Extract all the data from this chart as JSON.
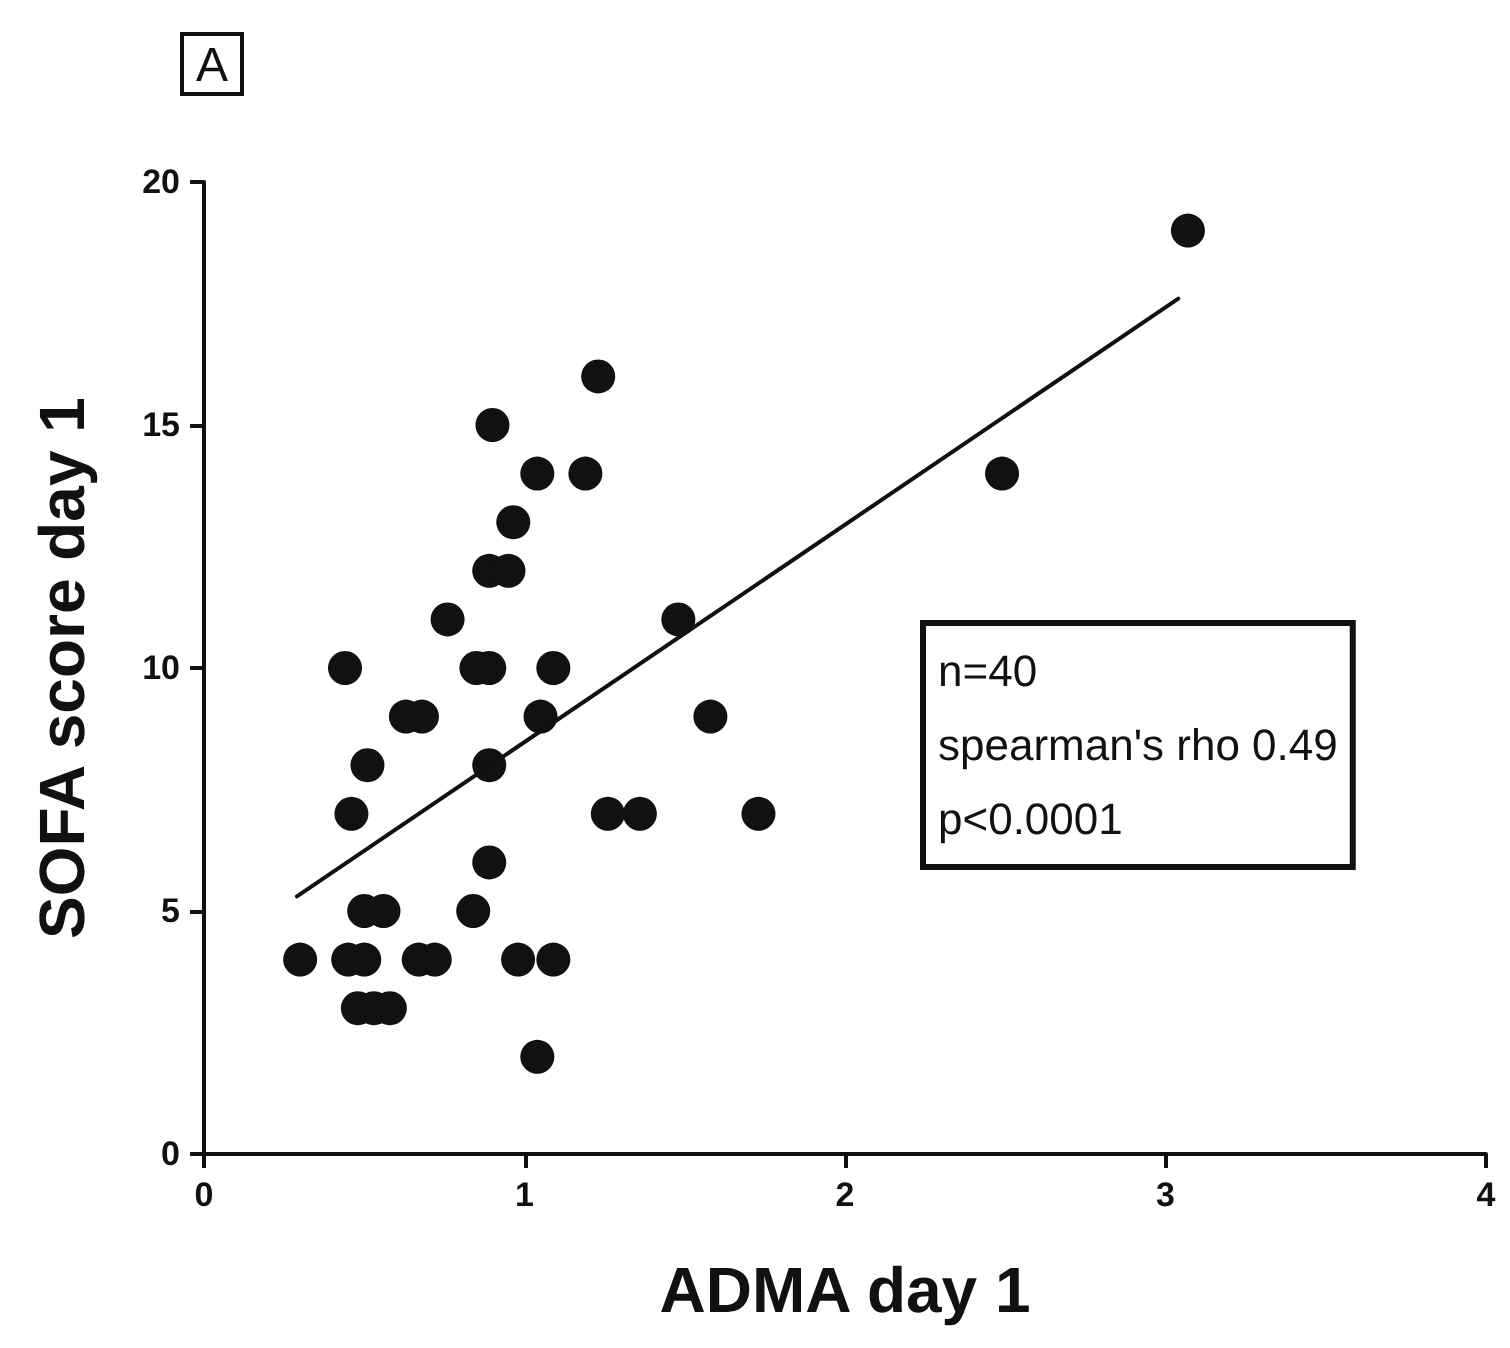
{
  "chart_data": {
    "type": "scatter",
    "xlabel": "ADMA day 1",
    "ylabel": "SOFA score day 1",
    "annotations": [
      "A",
      "n=40\nspearman's rho 0.49\np<0.0001"
    ],
    "xlim": [
      0,
      4
    ],
    "xticks": [
      0,
      1,
      2,
      3,
      4
    ],
    "ylim": [
      0,
      20
    ],
    "yticks": [
      0,
      5,
      10,
      15,
      20
    ],
    "grid": false,
    "marker": "circle",
    "series": [
      {
        "type": "scatter",
        "color": "#111111",
        "x": [
          1.23,
          0.9,
          1.04,
          1.19,
          0.965,
          0.89,
          0.95,
          0.76,
          1.48,
          0.44,
          0.85,
          0.89,
          1.09,
          0.63,
          0.68,
          1.05,
          1.58,
          0.51,
          0.89,
          0.46,
          1.26,
          1.36,
          1.73,
          0.89,
          0.5,
          0.56,
          0.84,
          0.3,
          0.45,
          0.5,
          0.67,
          0.72,
          0.98,
          1.09,
          0.48,
          0.53,
          0.58,
          1.04,
          2.49,
          3.07
        ],
        "values": [
          16,
          15,
          14,
          14,
          13,
          12,
          12,
          11,
          11,
          10,
          10,
          10,
          10,
          9,
          9,
          9,
          9,
          8,
          8,
          7,
          7,
          7,
          7,
          6,
          5,
          5,
          5,
          4,
          4,
          4,
          4,
          4,
          4,
          4,
          3,
          3,
          3,
          2,
          14,
          19
        ]
      },
      {
        "type": "line",
        "color": "#111111",
        "marker": "none",
        "line_style": "solid",
        "x": [
          0.29,
          3.04
        ],
        "values": [
          5.3,
          17.6
        ]
      }
    ]
  }
}
